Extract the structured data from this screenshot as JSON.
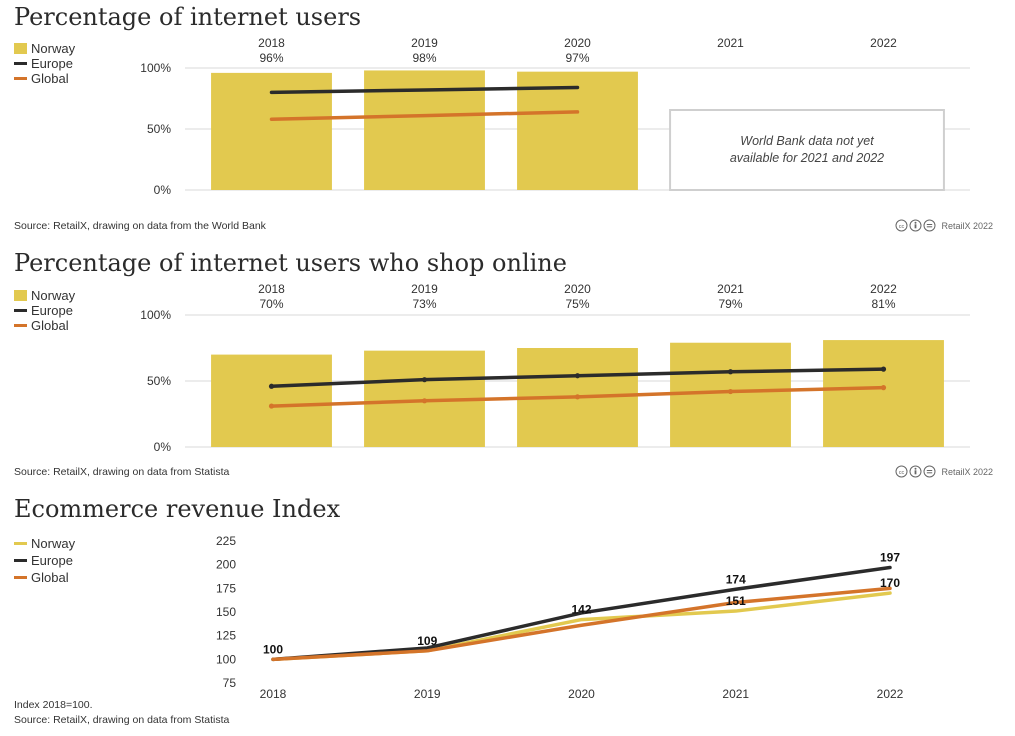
{
  "colors": {
    "norway": "#e2c94f",
    "europe": "#2b2b2b",
    "global": "#d4742a",
    "grid": "#d8d8d8",
    "text": "#333333"
  },
  "credit": "RetailX 2022",
  "chart_data": [
    {
      "type": "bar",
      "title": "Percentage of internet users",
      "legend": [
        "Norway",
        "Europe",
        "Global"
      ],
      "categories": [
        "2018",
        "2019",
        "2020",
        "2021",
        "2022"
      ],
      "value_labels": [
        "96%",
        "98%",
        "97%",
        "",
        ""
      ],
      "yticks": [
        "100%",
        "50%",
        "0%"
      ],
      "ylim": [
        0,
        100
      ],
      "series": [
        {
          "name": "Norway",
          "kind": "bar",
          "values": [
            96,
            98,
            97,
            null,
            null
          ]
        },
        {
          "name": "Europe",
          "kind": "line",
          "values": [
            80,
            82,
            84,
            null,
            null
          ]
        },
        {
          "name": "Global",
          "kind": "line",
          "values": [
            58,
            61,
            64,
            null,
            null
          ]
        }
      ],
      "note": [
        "World Bank data not yet",
        "available for 2021 and 2022"
      ],
      "source": "Source: RetailX, drawing on data from the World Bank"
    },
    {
      "type": "bar",
      "title": "Percentage of internet users who shop online",
      "legend": [
        "Norway",
        "Europe",
        "Global"
      ],
      "categories": [
        "2018",
        "2019",
        "2020",
        "2021",
        "2022"
      ],
      "value_labels": [
        "70%",
        "73%",
        "75%",
        "79%",
        "81%"
      ],
      "yticks": [
        "100%",
        "50%",
        "0%"
      ],
      "ylim": [
        0,
        100
      ],
      "series": [
        {
          "name": "Norway",
          "kind": "bar",
          "values": [
            70,
            73,
            75,
            79,
            81
          ]
        },
        {
          "name": "Europe",
          "kind": "line",
          "values": [
            46,
            51,
            54,
            57,
            59
          ]
        },
        {
          "name": "Global",
          "kind": "line",
          "values": [
            31,
            35,
            38,
            42,
            45
          ]
        }
      ],
      "source": "Source: RetailX, drawing on data from Statista"
    },
    {
      "type": "line",
      "title": "Ecommerce revenue Index",
      "legend": [
        "Norway",
        "Europe",
        "Global"
      ],
      "categories": [
        "2018",
        "2019",
        "2020",
        "2021",
        "2022"
      ],
      "yticks": [
        "225",
        "200",
        "175",
        "150",
        "125",
        "100",
        "75"
      ],
      "ylim": [
        75,
        225
      ],
      "series": [
        {
          "name": "Norway",
          "values": [
            100,
            109,
            142,
            151,
            170
          ]
        },
        {
          "name": "Europe",
          "values": [
            100,
            112,
            149,
            174,
            197
          ]
        },
        {
          "name": "Global",
          "values": [
            100,
            109,
            136,
            160,
            175
          ]
        }
      ],
      "data_labels": [
        {
          "category": "2018",
          "value": 100,
          "text": "100"
        },
        {
          "category": "2019",
          "value": 109,
          "text": "109"
        },
        {
          "category": "2020",
          "value": 142,
          "text": "142"
        },
        {
          "category": "2021",
          "value": 174,
          "text": "174"
        },
        {
          "category": "2021",
          "value": 151,
          "text": "151"
        },
        {
          "category": "2022",
          "value": 197,
          "text": "197"
        },
        {
          "category": "2022",
          "value": 170,
          "text": "170"
        }
      ],
      "footnote": "Index 2018=100.",
      "source": "Source: RetailX, drawing on data from Statista"
    }
  ]
}
